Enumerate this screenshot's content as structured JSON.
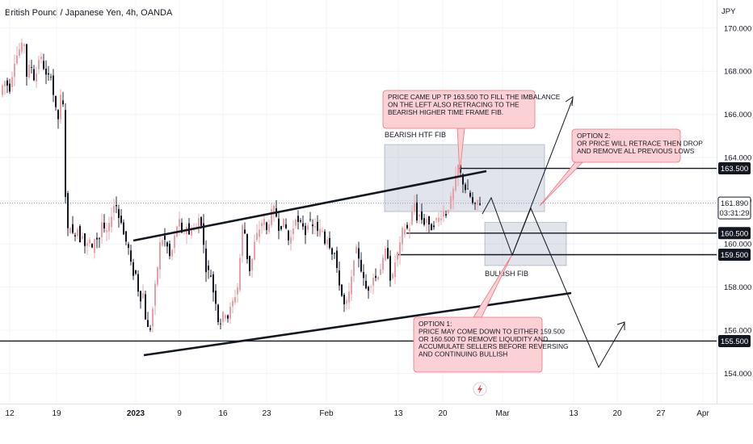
{
  "chart_data": {
    "type": "candlestick",
    "title": "British Pound / Japanese Yen, 4h, OANDA",
    "currency": "JPY",
    "y_ticks": [
      170.0,
      168.0,
      166.0,
      164.0,
      162.0,
      160.0,
      158.0,
      156.0,
      154.0
    ],
    "y_tick_labels": [
      "170.000",
      "168.000",
      "166.000",
      "164.000",
      "162.000",
      "160.000",
      "158.000",
      "156.000",
      "154.000"
    ],
    "ylim": [
      152.6,
      171.3
    ],
    "x_ticks": [
      "12",
      "19",
      "2023",
      "9",
      "16",
      "23",
      "Feb",
      "13",
      "20",
      "Mar",
      "13",
      "20",
      "27",
      "Apr"
    ],
    "last_price": "161.890",
    "countdown": "03:31:29",
    "levels": [
      {
        "label": "163.500",
        "value": 163.5
      },
      {
        "label": "160.500",
        "value": 160.5
      },
      {
        "label": "159.500",
        "value": 159.5
      },
      {
        "label": "155.500",
        "value": 155.5
      }
    ],
    "zones": [
      {
        "label": "BEARISH HTF FIB",
        "from": 161.5,
        "to": 164.6
      },
      {
        "label": "BULLISH FIB",
        "from": 159.0,
        "to": 161.0
      }
    ],
    "annotations": [
      {
        "lines": [
          "PRICE CAME UP TP 163.500 TO FILL THE IMBALANCE",
          "ON THE LEFT ALSO RETRACING TO THE",
          "BEARISH HIGHER TIME FRAME FIB."
        ]
      },
      {
        "lines": [
          "OPTION 2:",
          "OR PRICE WILL RETRACE THEN DROP",
          "AND REMOVE ALL PREVIOUS LOWS"
        ]
      },
      {
        "lines": [
          "OPTION 1:",
          "PRICE MAY COME DOWN TO EITHER 159.500",
          "OR 160.500 TO REMOVE LIQUIDITY AND",
          "ACCUMULATE SELLERS BEFORE REVERSING",
          "AND CONTINUING BULLISH"
        ]
      }
    ],
    "price_path": [
      [
        0,
        166.9
      ],
      [
        5,
        167.6
      ],
      [
        12,
        167.2
      ],
      [
        18,
        168.5
      ],
      [
        24,
        169.0
      ],
      [
        30,
        169.3
      ],
      [
        33,
        167.8
      ],
      [
        38,
        168.4
      ],
      [
        43,
        167.5
      ],
      [
        49,
        168.8
      ],
      [
        54,
        168.2
      ],
      [
        58,
        167.6
      ],
      [
        63,
        167.9
      ],
      [
        68,
        166.3
      ],
      [
        72,
        165.8
      ],
      [
        76,
        167.1
      ],
      [
        79,
        166.0
      ],
      [
        81,
        162.3
      ],
      [
        84,
        160.6
      ],
      [
        88,
        161.0
      ],
      [
        91,
        160.1
      ],
      [
        95,
        160.9
      ],
      [
        99,
        160.2
      ],
      [
        103,
        160.6
      ],
      [
        106,
        159.6
      ],
      [
        110,
        160.3
      ],
      [
        114,
        159.7
      ],
      [
        118,
        160.5
      ],
      [
        122,
        160.0
      ],
      [
        126,
        161.0
      ],
      [
        130,
        160.4
      ],
      [
        135,
        160.8
      ],
      [
        139,
        161.6
      ],
      [
        143,
        162.0
      ],
      [
        146,
        161.3
      ],
      [
        150,
        161.1
      ],
      [
        154,
        160.2
      ],
      [
        158,
        160.0
      ],
      [
        161,
        159.3
      ],
      [
        164,
        158.5
      ],
      [
        167,
        158.9
      ],
      [
        170,
        158.0
      ],
      [
        174,
        157.5
      ],
      [
        177,
        157.7
      ],
      [
        180,
        156.6
      ],
      [
        184,
        155.9
      ],
      [
        187,
        156.2
      ],
      [
        190,
        157.4
      ],
      [
        194,
        158.6
      ],
      [
        198,
        160.0
      ],
      [
        202,
        160.3
      ],
      [
        206,
        160.0
      ],
      [
        210,
        159.4
      ],
      [
        214,
        159.8
      ],
      [
        218,
        160.8
      ],
      [
        222,
        161.0
      ],
      [
        226,
        160.2
      ],
      [
        230,
        161.0
      ],
      [
        234,
        160.4
      ],
      [
        238,
        160.9
      ],
      [
        242,
        160.5
      ],
      [
        246,
        161.2
      ],
      [
        250,
        160.9
      ],
      [
        253,
        159.4
      ],
      [
        256,
        158.6
      ],
      [
        260,
        158.8
      ],
      [
        264,
        157.8
      ],
      [
        268,
        157.2
      ],
      [
        271,
        156.1
      ],
      [
        274,
        156.5
      ],
      [
        278,
        156.9
      ],
      [
        282,
        156.6
      ],
      [
        286,
        157.1
      ],
      [
        290,
        157.5
      ],
      [
        294,
        158.0
      ],
      [
        298,
        159.8
      ],
      [
        301,
        161.3
      ],
      [
        304,
        160.1
      ],
      [
        307,
        159.0
      ],
      [
        310,
        158.7
      ],
      [
        314,
        159.9
      ],
      [
        318,
        160.4
      ],
      [
        322,
        160.8
      ],
      [
        326,
        161.2
      ],
      [
        330,
        160.6
      ],
      [
        334,
        161.2
      ],
      [
        338,
        161.7
      ],
      [
        342,
        161.3
      ],
      [
        346,
        160.6
      ],
      [
        350,
        161.1
      ],
      [
        354,
        160.7
      ],
      [
        358,
        160.0
      ],
      [
        362,
        160.6
      ],
      [
        366,
        161.3
      ],
      [
        370,
        160.8
      ],
      [
        374,
        161.0
      ],
      [
        378,
        160.5
      ],
      [
        382,
        161.2
      ],
      [
        386,
        160.7
      ],
      [
        390,
        160.9
      ],
      [
        394,
        160.4
      ],
      [
        398,
        160.8
      ],
      [
        402,
        160.1
      ],
      [
        406,
        160.4
      ],
      [
        410,
        159.5
      ],
      [
        413,
        159.9
      ],
      [
        416,
        158.9
      ],
      [
        420,
        158.2
      ],
      [
        423,
        157.6
      ],
      [
        427,
        157.0
      ],
      [
        430,
        157.4
      ],
      [
        434,
        158.0
      ],
      [
        438,
        159.4
      ],
      [
        442,
        159.8
      ],
      [
        446,
        159.0
      ],
      [
        450,
        158.3
      ],
      [
        454,
        157.8
      ],
      [
        458,
        158.1
      ],
      [
        462,
        158.5
      ],
      [
        466,
        158.4
      ],
      [
        470,
        158.8
      ],
      [
        474,
        159.2
      ],
      [
        478,
        159.8
      ],
      [
        481,
        159.3
      ],
      [
        484,
        158.0
      ],
      [
        487,
        158.7
      ],
      [
        490,
        159.4
      ],
      [
        494,
        159.7
      ],
      [
        498,
        160.6
      ],
      [
        502,
        160.8
      ],
      [
        506,
        160.6
      ],
      [
        510,
        161.4
      ],
      [
        513,
        161.9
      ],
      [
        516,
        161.2
      ],
      [
        520,
        161.4
      ],
      [
        524,
        160.9
      ],
      [
        528,
        161.2
      ],
      [
        532,
        160.6
      ],
      [
        536,
        160.9
      ],
      [
        540,
        161.1
      ],
      [
        544,
        161.2
      ],
      [
        548,
        161.5
      ],
      [
        552,
        161.4
      ],
      [
        556,
        161.8
      ],
      [
        560,
        162.3
      ],
      [
        564,
        163.0
      ],
      [
        567,
        163.6
      ],
      [
        571,
        163.1
      ],
      [
        575,
        162.6
      ],
      [
        579,
        162.4
      ],
      [
        583,
        162.1
      ],
      [
        587,
        161.6
      ],
      [
        591,
        162.0
      ],
      [
        594,
        161.9
      ]
    ]
  }
}
